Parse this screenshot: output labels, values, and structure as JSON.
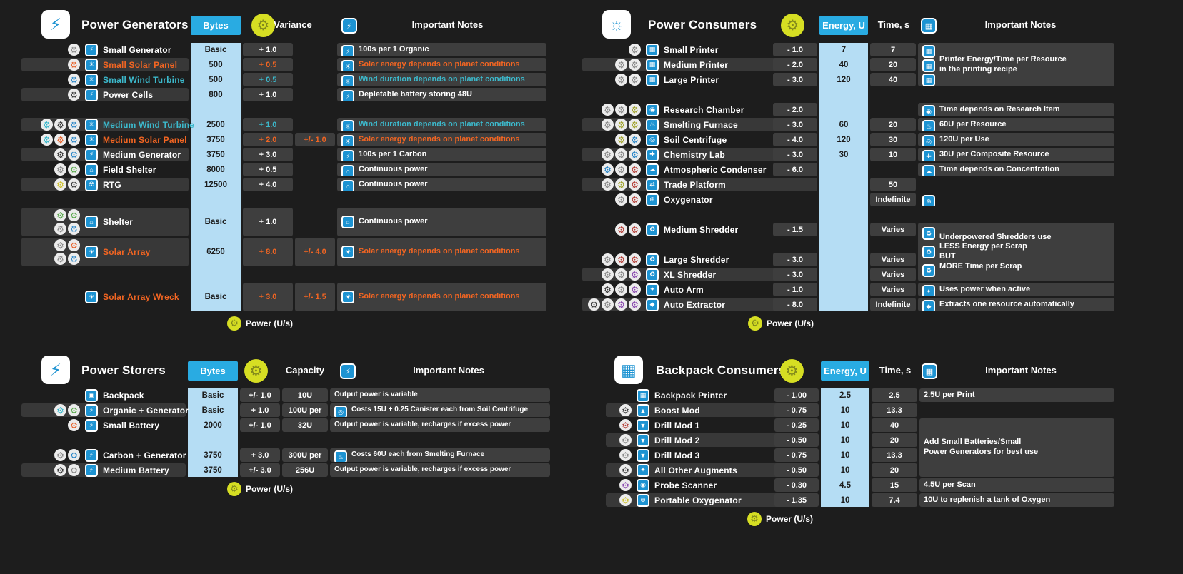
{
  "footer_label": "Power (U/s)",
  "colors": {
    "accent_blue": "#29abe2",
    "light_blue": "#b5ddf4",
    "row_gray": "#3e3e3e",
    "solar_orange": "#f26522",
    "wind_teal": "#3cb9cc",
    "power_yellow": "#d6de23"
  },
  "icon_glyphs": {
    "power": "⚙",
    "resource": "⚙",
    "generator": "⚡",
    "solar": "☀",
    "wind": "✳",
    "power-cells": "⚡",
    "shelter": "⌂",
    "rtg": "☢",
    "printer": "▦",
    "research": "◉",
    "furnace": "♨",
    "centrifuge": "◎",
    "chemistry": "✚",
    "condenser": "☁",
    "trade": "⇄",
    "oxygenator": "⊕",
    "shredder": "♻",
    "auto-arm": "✦",
    "auto-extractor": "◆",
    "backpack": "▣",
    "battery": "⚡",
    "boost": "▲",
    "drill": "▼",
    "augment": "✦",
    "scanner": "◉",
    "bulb": "☼",
    "calculator": "▦"
  },
  "chart_data": {
    "type": "table",
    "tables": {
      "generators": {
        "header": {
          "title": "Power Generators",
          "col1": "Bytes",
          "col2": "Variance",
          "col3": "Important Notes"
        },
        "rows": [
          {
            "name": "Small Generator",
            "res": [
              "gray"
            ],
            "item": "generator",
            "bytes": "Basic",
            "v1": "+ 1.0"
          },
          {
            "name": "Small Solar Panel",
            "color": "orange",
            "res": [
              "orange"
            ],
            "item": "solar",
            "bytes": "500",
            "v1": "+ 0.5"
          },
          {
            "name": "Small Wind Turbine",
            "color": "teal",
            "res": [
              "blue"
            ],
            "item": "wind",
            "bytes": "500",
            "v1": "+ 0.5"
          },
          {
            "name": "Power Cells",
            "res": [
              "dark"
            ],
            "item": "power-cells",
            "bytes": "800",
            "v1": "+ 1.0"
          },
          {
            "spacer": true
          },
          {
            "name": "Medium Wind Turbine",
            "color": "teal",
            "res": [
              "teal",
              "dark",
              "blue"
            ],
            "item": "wind",
            "bytes": "2500",
            "v1": "+ 1.0"
          },
          {
            "name": "Medium Solar Panel",
            "color": "orange",
            "res": [
              "teal",
              "orange",
              "blue"
            ],
            "item": "solar",
            "bytes": "3750",
            "v1": "+ 2.0",
            "v2": "+/- 1.0"
          },
          {
            "name": "Medium Generator",
            "res": [
              "dark",
              "blue"
            ],
            "item": "generator",
            "bytes": "3750",
            "v1": "+ 3.0"
          },
          {
            "name": "Field Shelter",
            "res": [
              "gray",
              "green"
            ],
            "item": "shelter",
            "bytes": "8000",
            "v1": "+ 0.5"
          },
          {
            "name": "RTG",
            "res": [
              "yellow",
              "dark"
            ],
            "item": "rtg",
            "bytes": "12500",
            "v1": "+ 4.0"
          },
          {
            "spacer": true
          },
          {
            "name": "Shelter",
            "span": 2,
            "res": [
              "green",
              "green",
              "gray",
              "blue"
            ],
            "item": "shelter",
            "bytes": "Basic",
            "v1": "+ 1.0"
          },
          {
            "name": "Solar Array",
            "color": "orange",
            "span": 2,
            "res": [
              "gray",
              "orange",
              "gray",
              "blue"
            ],
            "item": "solar",
            "bytes": "6250",
            "v1": "+ 8.0",
            "v2": "+/- 4.0"
          },
          {
            "spacer": true
          },
          {
            "name": "Solar Array Wreck",
            "color": "orange",
            "span": 2,
            "res": [],
            "item": "solar",
            "bytes": "Basic",
            "v1": "+ 3.0",
            "v2": "+/- 1.5"
          }
        ],
        "notes": [
          {
            "row": 1,
            "icons": [
              "generator"
            ],
            "text": "100s per 1 Organic"
          },
          {
            "row": 2,
            "icons": [
              "solar"
            ],
            "color": "orange",
            "text": "Solar energy depends on planet conditions"
          },
          {
            "row": 3,
            "icons": [
              "wind"
            ],
            "color": "teal",
            "text": "Wind duration depends on planet conditions"
          },
          {
            "row": 4,
            "icons": [
              "power-cells"
            ],
            "text": "Depletable battery storing 48U"
          },
          {
            "row": 6,
            "icons": [
              "wind"
            ],
            "color": "teal",
            "text": "Wind duration depends on planet conditions"
          },
          {
            "row": 7,
            "icons": [
              "solar"
            ],
            "color": "orange",
            "text": "Solar energy depends on planet conditions"
          },
          {
            "row": 8,
            "icons": [
              "generator"
            ],
            "text": "100s per 1 Carbon"
          },
          {
            "row": 9,
            "icons": [
              "shelter"
            ],
            "text": "Continuous power"
          },
          {
            "row": 10,
            "icons": [
              "shelter"
            ],
            "text": "Continuous power"
          },
          {
            "row": 12,
            "span": 2,
            "icons": [
              "shelter"
            ],
            "text": "Continuous power"
          },
          {
            "row": 14,
            "span": 2,
            "icons": [
              "solar"
            ],
            "color": "orange",
            "text": "Solar energy depends on planet conditions"
          },
          {
            "row": 17,
            "span": 2,
            "icons": [
              "solar"
            ],
            "color": "orange",
            "text": "Solar energy depends on planet conditions"
          }
        ]
      },
      "consumers": {
        "header": {
          "title": "Power Consumers",
          "col1": "Energy, U",
          "col2": "Time, s",
          "col3": "Important Notes"
        },
        "rows": [
          {
            "name": "Small Printer",
            "res": [
              "gray"
            ],
            "item": "printer",
            "energy": "- 1.0",
            "u": "7",
            "t": "7"
          },
          {
            "name": "Medium Printer",
            "res": [
              "gray",
              "gray"
            ],
            "item": "printer",
            "energy": "- 2.0",
            "u": "40",
            "t": "20"
          },
          {
            "name": "Large Printer",
            "res": [
              "gray",
              "gray"
            ],
            "item": "printer",
            "energy": "- 3.0",
            "u": "120",
            "t": "40"
          },
          {
            "spacer": true
          },
          {
            "name": "Research Chamber",
            "res": [
              "gray",
              "gray",
              "olive"
            ],
            "item": "research",
            "energy": "- 2.0"
          },
          {
            "name": "Smelting Furnace",
            "res": [
              "gray",
              "olive",
              "olive"
            ],
            "item": "furnace",
            "energy": "- 3.0",
            "u": "60",
            "t": "20"
          },
          {
            "name": "Soil Centrifuge",
            "res": [
              "olive",
              "blue"
            ],
            "item": "centrifuge",
            "energy": "- 4.0",
            "u": "120",
            "t": "30"
          },
          {
            "name": "Chemistry Lab",
            "res": [
              "gray",
              "gray",
              "blue"
            ],
            "item": "chemistry",
            "energy": "- 3.0",
            "u": "30",
            "t": "10"
          },
          {
            "name": "Atmospheric Condenser",
            "res": [
              "blue",
              "gray",
              "red"
            ],
            "item": "condenser",
            "energy": "- 6.0"
          },
          {
            "name": "Trade Platform",
            "res": [
              "gray",
              "olive",
              "red"
            ],
            "item": "trade",
            "t": "50"
          },
          {
            "name": "Oxygenator",
            "res": [
              "gray",
              "red"
            ],
            "item": "oxygenator",
            "t": "Indefinite"
          },
          {
            "spacer": true
          },
          {
            "name": "Medium Shredder",
            "res": [
              "red",
              "red"
            ],
            "item": "shredder",
            "energy": "- 1.5",
            "t": "Varies"
          },
          {
            "spacer": true
          },
          {
            "name": "Large Shredder",
            "res": [
              "gray",
              "red",
              "red"
            ],
            "item": "shredder",
            "energy": "- 3.0",
            "t": "Varies"
          },
          {
            "name": "XL Shredder",
            "res": [
              "gray",
              "gray",
              "purple"
            ],
            "item": "shredder",
            "energy": "- 3.0",
            "t": "Varies"
          },
          {
            "name": "Auto Arm",
            "res": [
              "dark",
              "gray",
              "purple"
            ],
            "item": "auto-arm",
            "energy": "- 1.0",
            "t": "Varies"
          },
          {
            "name": "Auto Extractor",
            "res": [
              "dark",
              "gray",
              "purple",
              "purple"
            ],
            "item": "auto-extractor",
            "energy": "- 8.0",
            "t": "Indefinite"
          }
        ],
        "notes": [
          {
            "row": 1,
            "span": 3,
            "icons": [
              "printer",
              "printer",
              "printer"
            ],
            "text": "Printer Energy/Time per Resource\nin the printing recipe"
          },
          {
            "row": 5,
            "icons": [
              "research"
            ],
            "text": "Time depends on Research Item"
          },
          {
            "row": 6,
            "icons": [
              "furnace"
            ],
            "text": "60U per Resource"
          },
          {
            "row": 7,
            "icons": [
              "centrifuge"
            ],
            "text": "120U per Use"
          },
          {
            "row": 8,
            "icons": [
              "chemistry"
            ],
            "text": "30U per Composite Resource"
          },
          {
            "row": 9,
            "icons": [
              "condenser"
            ],
            "text": "Time depends on Concentration"
          },
          {
            "row": 11,
            "icons": [
              "oxygenator"
            ],
            "text": ""
          },
          {
            "row": 13,
            "span": 4,
            "icons": [
              "shredder",
              "shredder",
              "shredder"
            ],
            "text": "Underpowered Shredders use\nLESS Energy per Scrap\nBUT\nMORE Time per Scrap"
          },
          {
            "row": 17,
            "icons": [
              "auto-arm"
            ],
            "text": "Uses power when active"
          },
          {
            "row": 18,
            "icons": [
              "auto-extractor"
            ],
            "text": "Extracts one resource automatically"
          }
        ]
      },
      "storers": {
        "header": {
          "title": "Power Storers",
          "col1": "Bytes",
          "col2": "Capacity",
          "col3": "Important Notes"
        },
        "rows": [
          {
            "name": "Backpack",
            "res": [],
            "item": "backpack",
            "bytes": "Basic",
            "v1": "+/- 1.0",
            "cap": "10U"
          },
          {
            "name": "Organic + Generator",
            "res": [
              "teal",
              "green"
            ],
            "item": "generator",
            "bytes": "Basic",
            "v1": "+ 1.0",
            "cap": "100U per"
          },
          {
            "name": "Small Battery",
            "res": [
              "orange"
            ],
            "item": "battery",
            "bytes": "2000",
            "v1": "+/- 1.0",
            "cap": "32U"
          },
          {
            "spacer": true
          },
          {
            "name": "Carbon + Generator",
            "res": [
              "gray",
              "blue"
            ],
            "item": "generator",
            "bytes": "3750",
            "v1": "+ 3.0",
            "cap": "300U per"
          },
          {
            "name": "Medium Battery",
            "res": [
              "dark",
              "gray"
            ],
            "item": "battery",
            "bytes": "3750",
            "v1": "+/- 3.0",
            "cap": "256U"
          },
          {
            "spacer": true
          },
          {
            "spacer": true
          }
        ],
        "notes": [
          {
            "row": 1,
            "text": "Output power is variable"
          },
          {
            "row": 2,
            "icons": [
              "centrifuge"
            ],
            "text": "Costs 15U + 0.25 Canister each from Soil Centrifuge"
          },
          {
            "row": 3,
            "text": "Output power is variable, recharges if excess power"
          },
          {
            "row": 5,
            "icons": [
              "furnace"
            ],
            "text": "Costs 60U each from Smelting Furnace"
          },
          {
            "row": 6,
            "text": "Output power is variable, recharges if excess power"
          }
        ]
      },
      "backpack": {
        "header": {
          "title": "Backpack Consumers",
          "col1": "Energy, U",
          "col2": "Time, s",
          "col3": "Important Notes"
        },
        "rows": [
          {
            "name": "Backpack Printer",
            "res": [],
            "item": "printer",
            "energy": "- 1.00",
            "u": "2.5",
            "t": "2.5"
          },
          {
            "name": "Boost Mod",
            "res": [
              "dark"
            ],
            "item": "boost",
            "energy": "- 0.75",
            "u": "10",
            "t": "13.3"
          },
          {
            "name": "Drill Mod 1",
            "res": [
              "red"
            ],
            "item": "drill",
            "energy": "- 0.25",
            "u": "10",
            "t": "40"
          },
          {
            "name": "Drill Mod 2",
            "res": [
              "gray"
            ],
            "item": "drill",
            "energy": "- 0.50",
            "u": "10",
            "t": "20"
          },
          {
            "name": "Drill Mod 3",
            "res": [
              "gray"
            ],
            "item": "drill",
            "energy": "- 0.75",
            "u": "10",
            "t": "13.3"
          },
          {
            "name": "All Other Augments",
            "res": [
              "dark"
            ],
            "item": "augment",
            "energy": "- 0.50",
            "u": "10",
            "t": "20"
          },
          {
            "name": "Probe Scanner",
            "res": [
              "purple"
            ],
            "item": "scanner",
            "energy": "- 0.30",
            "u": "4.5",
            "t": "15"
          },
          {
            "name": "Portable Oxygenator",
            "res": [
              "yellow"
            ],
            "item": "oxygenator",
            "energy": "- 1.35",
            "u": "10",
            "t": "7.4"
          }
        ],
        "notes": [
          {
            "row": 1,
            "text": "2.5U per Print"
          },
          {
            "row": 3,
            "span": 4,
            "text": "Add Small Batteries/Small\nPower Generators for best use"
          },
          {
            "row": 7,
            "text": "4.5U per Scan"
          },
          {
            "row": 8,
            "text": "10U to replenish a tank of Oxygen"
          }
        ]
      }
    }
  }
}
